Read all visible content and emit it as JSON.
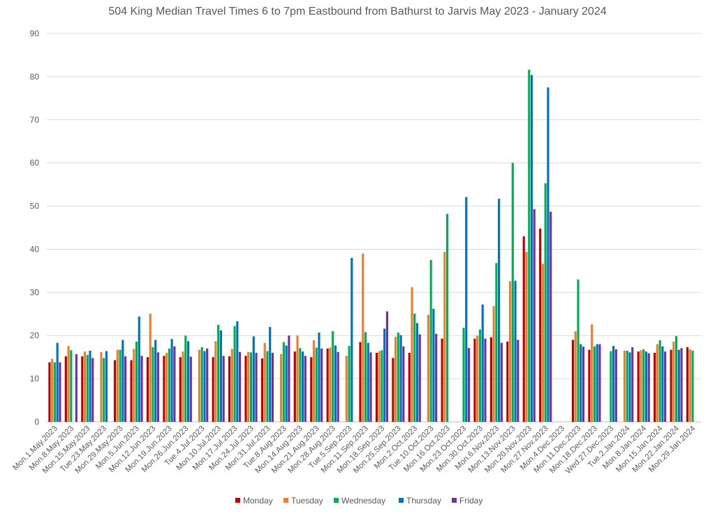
{
  "chart_data": {
    "type": "bar",
    "title": "504 King Median Travel Times 6 to 7pm Eastbound from Bathurst to Jarvis May 2023 - January 2024",
    "xlabel": "",
    "ylabel": "",
    "ylim": [
      0,
      90
    ],
    "yticks": [
      0,
      10,
      20,
      30,
      40,
      50,
      60,
      70,
      80,
      90
    ],
    "grid": true,
    "legend_position": "bottom",
    "categories": [
      "Mon.1.May.2023",
      "Mon.8.May.2023",
      "Mon.15.May.2023",
      "Tue.23.May.2023",
      "Mon.29.May.2023",
      "Mon.5.Jun.2023",
      "Mon.12.Jun.2023",
      "Mon.19.Jun.2023",
      "Mon.26.Jun.2023",
      "Tue.4.Jul.2023",
      "Mon.10.Jul.2023",
      "Mon.17.Jul.2023",
      "Mon.24.Jul.2023",
      "Mon.31.Jul.2023",
      "Tue.8.Aug.2023",
      "Mon.14.Aug.2023",
      "Mon.21.Aug.2023",
      "Mon.28.Aug.2023",
      "Tue.5.Sep.2023",
      "Mon.11.Sep.2023",
      "Mon.18.Sep.2023",
      "Mon.25.Sep.2023",
      "Mon.2.Oct.2023",
      "Tue.10.Oct.2023",
      "Mon.16.Oct.2023",
      "Mon.23.Oct.2023",
      "Mon.30.Oct.2023",
      "Mon.6.Nov.2023",
      "Mon.13.Nov.2023",
      "Mon.20.Nov.2023",
      "Mon.27.Nov.2023",
      "Mon.4.Dec.2023",
      "Mon.11.Dec.2023",
      "Mon.18.Dec.2023",
      "Wed.27.Dec.2023",
      "Tue.2.Jan.2024",
      "Mon.8.Jan.2024",
      "Mon.15.Jan.2024",
      "Mon.22.Jan.2024",
      "Mon.29.Jan.2024"
    ],
    "series": [
      {
        "name": "Monday",
        "color": "#c00000",
        "values": [
          13.8,
          15.2,
          15.2,
          null,
          14.3,
          14.3,
          15.0,
          15.3,
          15.0,
          null,
          15.0,
          15.2,
          15.3,
          14.7,
          null,
          16.3,
          15.0,
          17.0,
          null,
          18.5,
          16.0,
          14.8,
          16.0,
          null,
          19.3,
          null,
          19.3,
          19.6,
          18.6,
          43.0,
          44.8,
          null,
          19.0,
          16.7,
          null,
          null,
          16.3,
          16.0,
          16.7,
          17.3
        ]
      },
      {
        "name": "Tuesday",
        "color": "#ed7d31",
        "values": [
          14.6,
          17.6,
          16.3,
          16.2,
          16.7,
          16.9,
          25.1,
          16.0,
          16.3,
          16.7,
          18.7,
          16.9,
          16.2,
          18.3,
          15.7,
          20.0,
          18.9,
          17.2,
          15.3,
          39.0,
          16.4,
          19.7,
          31.2,
          24.8,
          39.4,
          null,
          20.0,
          26.8,
          32.6,
          39.4,
          36.6,
          null,
          21.0,
          22.6,
          null,
          16.5,
          16.6,
          18.0,
          18.6,
          16.8
        ]
      },
      {
        "name": "Wednesday",
        "color": "#00b050",
        "values": [
          13.8,
          16.6,
          15.5,
          14.8,
          16.7,
          18.6,
          17.3,
          17.0,
          20.0,
          17.3,
          22.5,
          22.2,
          16.1,
          16.4,
          18.5,
          17.1,
          17.2,
          21.0,
          17.6,
          20.8,
          16.6,
          20.7,
          25.1,
          37.5,
          48.2,
          21.8,
          21.4,
          36.8,
          60.0,
          81.6,
          55.3,
          null,
          33.0,
          17.5,
          16.4,
          16.5,
          16.8,
          18.9,
          19.9,
          16.5
        ]
      },
      {
        "name": "Thursday",
        "color": "#0070c0",
        "values": [
          18.3,
          null,
          16.5,
          16.4,
          19.0,
          24.4,
          19.0,
          19.2,
          18.7,
          16.4,
          21.2,
          23.3,
          19.8,
          22.0,
          17.7,
          16.3,
          20.7,
          17.7,
          38.0,
          18.3,
          21.6,
          20.1,
          22.9,
          26.2,
          null,
          52.1,
          27.2,
          51.7,
          32.7,
          80.4,
          77.5,
          null,
          18.0,
          18.0,
          17.6,
          16.1,
          16.3,
          17.5,
          16.7,
          null
        ]
      },
      {
        "name": "Friday",
        "color": "#7030a0",
        "values": [
          13.8,
          15.7,
          14.8,
          null,
          15.2,
          15.3,
          16.1,
          17.5,
          15.1,
          17.0,
          15.3,
          16.2,
          16.0,
          16.0,
          20.0,
          15.3,
          17.0,
          16.2,
          null,
          16.1,
          25.6,
          17.5,
          20.3,
          20.4,
          null,
          17.1,
          19.3,
          18.3,
          19.0,
          49.3,
          48.7,
          null,
          17.4,
          18.0,
          16.8,
          17.3,
          15.9,
          16.3,
          17.1,
          null
        ]
      }
    ]
  }
}
